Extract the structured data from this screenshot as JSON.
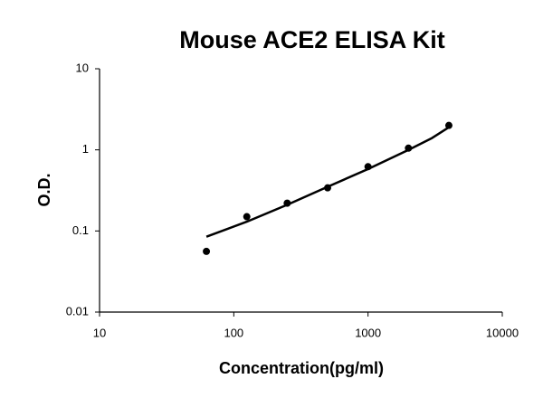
{
  "chart_data": {
    "type": "scatter",
    "title": "Mouse ACE2 ELISA Kit",
    "x_label": "Concentration(pg/ml)",
    "y_label": "O.D.",
    "xlim": [
      10,
      10000
    ],
    "xticks": [
      10,
      100,
      1000,
      10000
    ],
    "ylim": [
      0.01,
      10
    ],
    "yticks": [
      0.01,
      0.1,
      1,
      10
    ],
    "log_x": true,
    "log_y": true,
    "grid": false,
    "series": [
      {
        "mode": "markers",
        "color": "#000000",
        "x": [
          62.5,
          125,
          250,
          500,
          1000,
          2000,
          4000
        ],
        "values": [
          0.056,
          0.15,
          0.22,
          0.34,
          0.62,
          1.05,
          2.0
        ]
      },
      {
        "mode": "line",
        "color": "#000000",
        "x": [
          62.5,
          125,
          250,
          500,
          1000,
          2000,
          3000,
          4000
        ],
        "values": [
          0.085,
          0.13,
          0.21,
          0.35,
          0.58,
          1.0,
          1.4,
          1.9
        ]
      }
    ]
  }
}
